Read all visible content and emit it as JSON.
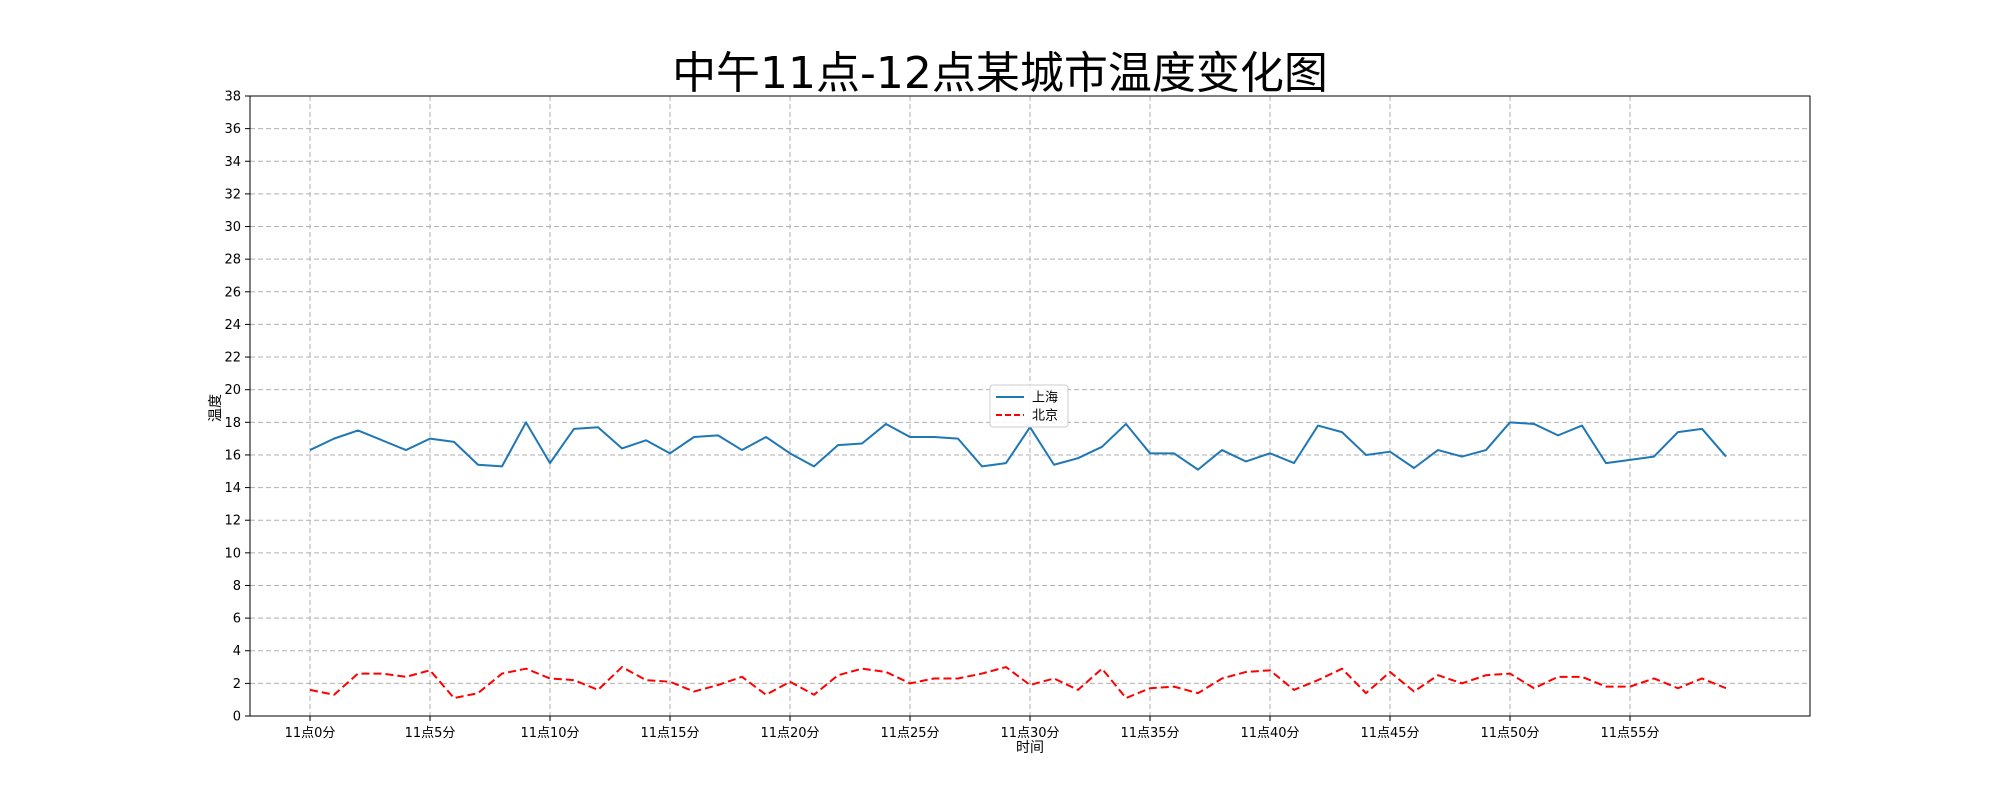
{
  "chart_data": {
    "type": "line",
    "title": "中午11点-12点某城市温度变化图",
    "xlabel": "时间",
    "ylabel": "温度",
    "ylim": [
      0,
      38
    ],
    "yticks": [
      0,
      2,
      4,
      6,
      8,
      10,
      12,
      14,
      16,
      18,
      20,
      22,
      24,
      26,
      28,
      30,
      32,
      34,
      36,
      38
    ],
    "x": [
      0,
      1,
      2,
      3,
      4,
      5,
      6,
      7,
      8,
      9,
      10,
      11,
      12,
      13,
      14,
      15,
      16,
      17,
      18,
      19,
      20,
      21,
      22,
      23,
      24,
      25,
      26,
      27,
      28,
      29,
      30,
      31,
      32,
      33,
      34,
      35,
      36,
      37,
      38,
      39,
      40,
      41,
      42,
      43,
      44,
      45,
      46,
      47,
      48,
      49,
      50,
      51,
      52,
      53,
      54,
      55,
      56,
      57,
      58,
      59
    ],
    "xlim": [
      -2.5,
      62.5
    ],
    "xticks": [
      0,
      5,
      10,
      15,
      20,
      25,
      30,
      35,
      40,
      45,
      50,
      55
    ],
    "xtick_labels": [
      "11点0分",
      "11点5分",
      "11点10分",
      "11点15分",
      "11点20分",
      "11点25分",
      "11点30分",
      "11点35分",
      "11点40分",
      "11点45分",
      "11点50分",
      "11点55分"
    ],
    "grid": true,
    "legend_position": "center",
    "series": [
      {
        "name": "上海",
        "color": "#1f77b4",
        "style": "solid",
        "values": [
          16.3,
          17.0,
          17.5,
          16.9,
          16.3,
          17.0,
          16.8,
          15.4,
          15.3,
          18.0,
          15.5,
          17.6,
          17.7,
          16.4,
          16.9,
          16.1,
          17.1,
          17.2,
          16.3,
          17.1,
          16.1,
          15.3,
          16.6,
          16.7,
          17.9,
          17.1,
          17.1,
          17.0,
          15.3,
          15.5,
          17.7,
          15.4,
          15.8,
          16.5,
          17.9,
          16.1,
          16.1,
          15.1,
          16.3,
          15.6,
          16.1,
          15.5,
          17.8,
          17.4,
          16.0,
          16.2,
          15.2,
          16.3,
          15.9,
          16.3,
          18.0,
          17.9,
          17.2,
          17.8,
          15.5,
          15.7,
          15.9,
          17.4,
          17.6,
          15.9
        ]
      },
      {
        "name": "北京",
        "color": "#ff0000",
        "style": "dashed",
        "values": [
          1.6,
          1.3,
          2.6,
          2.6,
          2.4,
          2.8,
          1.1,
          1.4,
          2.6,
          2.9,
          2.3,
          2.2,
          1.6,
          3.0,
          2.2,
          2.1,
          1.5,
          1.9,
          2.4,
          1.3,
          2.1,
          1.3,
          2.5,
          2.9,
          2.7,
          2.0,
          2.3,
          2.3,
          2.6,
          3.0,
          1.9,
          2.3,
          1.6,
          2.9,
          1.1,
          1.7,
          1.8,
          1.4,
          2.3,
          2.7,
          2.8,
          1.6,
          2.2,
          2.9,
          1.4,
          2.7,
          1.5,
          2.5,
          2.0,
          2.5,
          2.6,
          1.7,
          2.4,
          2.4,
          1.8,
          1.8,
          2.3,
          1.7,
          2.3,
          1.7
        ]
      }
    ]
  }
}
